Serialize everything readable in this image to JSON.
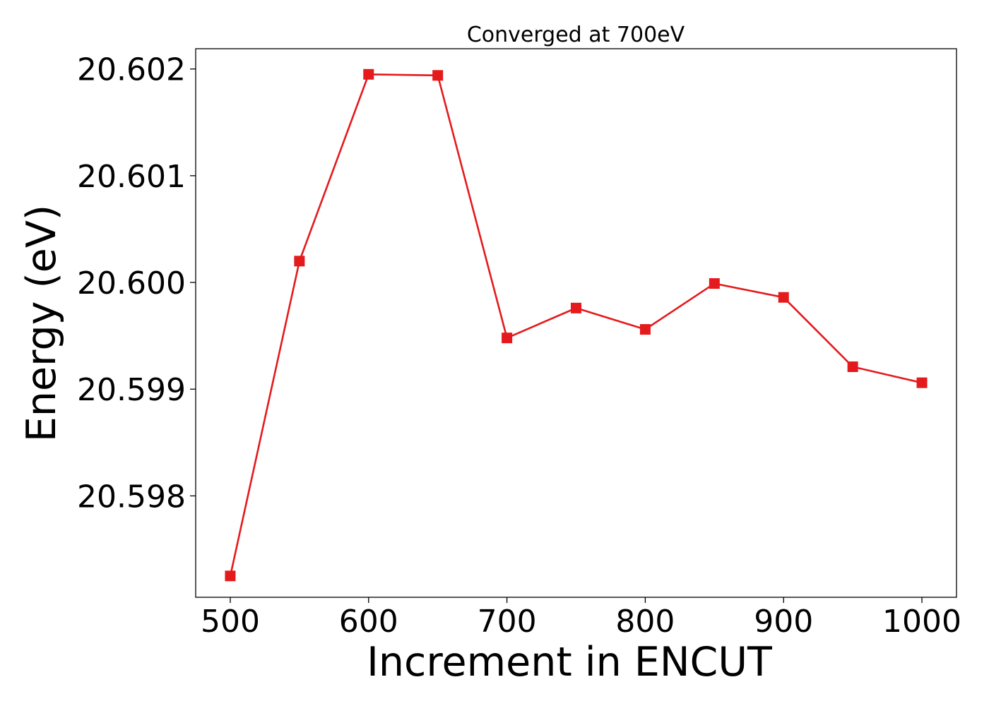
{
  "chart_data": {
    "type": "line",
    "title": "Converged at 700eV",
    "xlabel": "Increment in ENCUT",
    "ylabel": "Energy (eV)",
    "x": [
      500,
      550,
      600,
      650,
      700,
      750,
      800,
      850,
      900,
      950,
      1000
    ],
    "series": [
      {
        "values": [
          20.59725,
          20.6002,
          20.60195,
          20.60194,
          20.59948,
          20.59976,
          20.59956,
          20.59999,
          20.59986,
          20.59921,
          20.59906
        ],
        "color": "#e41a1c",
        "marker": "square"
      }
    ],
    "xticks": [
      500,
      600,
      700,
      800,
      900,
      1000
    ],
    "xtick_labels": [
      "500",
      "600",
      "700",
      "800",
      "900",
      "1000"
    ],
    "yticks": [
      20.598,
      20.599,
      20.6,
      20.601,
      20.602
    ],
    "ytick_labels": [
      "20.598",
      "20.599",
      "20.600",
      "20.601",
      "20.602"
    ],
    "xlim": [
      475,
      1025
    ],
    "ylim": [
      20.59705,
      20.60219
    ],
    "grid": false,
    "legend": "none"
  }
}
